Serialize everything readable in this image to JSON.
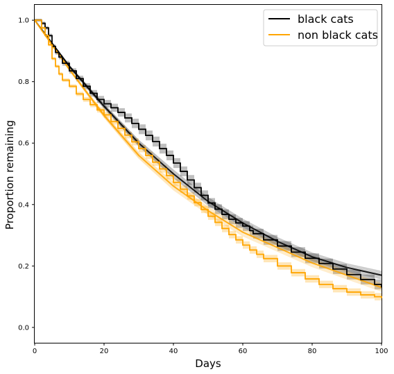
{
  "chart_data": {
    "type": "line",
    "xlabel": "Days",
    "ylabel": "Proportion remaining",
    "xlim": [
      0,
      100
    ],
    "ylim": [
      -0.05,
      1.05
    ],
    "xticks": [
      0,
      20,
      40,
      60,
      80,
      100
    ],
    "yticks": [
      0.0,
      0.2,
      0.4,
      0.6,
      0.8,
      1.0
    ],
    "x_tick_labels": [
      "0",
      "20",
      "40",
      "60",
      "80",
      "100"
    ],
    "y_tick_labels": [
      "0.0",
      "0.2",
      "0.4",
      "0.6",
      "0.8",
      "1.0"
    ],
    "grid": false,
    "legend_position": "top-right",
    "colors": {
      "black": "#000000",
      "orange": "#ffa500"
    },
    "series": [
      {
        "name": "black cats",
        "color": "#000000",
        "kind": "step",
        "x": [
          0,
          2,
          3,
          4,
          5,
          6,
          7,
          8,
          10,
          12,
          14,
          16,
          18,
          20,
          22,
          24,
          26,
          28,
          30,
          32,
          34,
          36,
          38,
          40,
          42,
          44,
          46,
          48,
          50,
          52,
          54,
          56,
          58,
          60,
          62,
          63,
          66,
          70,
          74,
          78,
          82,
          86,
          90,
          94,
          98,
          100
        ],
        "y": [
          1.0,
          0.99,
          0.975,
          0.95,
          0.915,
          0.895,
          0.88,
          0.86,
          0.835,
          0.81,
          0.785,
          0.762,
          0.742,
          0.728,
          0.715,
          0.7,
          0.682,
          0.664,
          0.645,
          0.625,
          0.605,
          0.582,
          0.56,
          0.535,
          0.508,
          0.48,
          0.455,
          0.43,
          0.405,
          0.385,
          0.368,
          0.352,
          0.34,
          0.33,
          0.315,
          0.305,
          0.285,
          0.265,
          0.245,
          0.225,
          0.208,
          0.19,
          0.172,
          0.156,
          0.14,
          0.13
        ]
      },
      {
        "name": "non black cats",
        "color": "#ffa500",
        "kind": "step",
        "x": [
          0,
          2,
          3,
          4,
          5,
          6,
          7,
          8,
          10,
          12,
          14,
          16,
          18,
          20,
          22,
          24,
          26,
          28,
          30,
          32,
          34,
          36,
          38,
          40,
          42,
          44,
          46,
          48,
          50,
          52,
          54,
          56,
          58,
          60,
          62,
          64,
          66,
          70,
          74,
          78,
          82,
          86,
          90,
          94,
          98,
          100
        ],
        "y": [
          1.0,
          0.975,
          0.95,
          0.92,
          0.875,
          0.85,
          0.825,
          0.805,
          0.785,
          0.76,
          0.742,
          0.725,
          0.708,
          0.692,
          0.67,
          0.648,
          0.626,
          0.604,
          0.582,
          0.56,
          0.538,
          0.516,
          0.494,
          0.472,
          0.45,
          0.428,
          0.406,
          0.384,
          0.362,
          0.342,
          0.322,
          0.302,
          0.285,
          0.268,
          0.252,
          0.238,
          0.224,
          0.2,
          0.178,
          0.158,
          0.14,
          0.126,
          0.115,
          0.106,
          0.1,
          0.095
        ]
      }
    ],
    "fitted_curves": [
      {
        "name": "black cats fit",
        "color": "#000000",
        "start": 1.0,
        "x": [
          0,
          10,
          20,
          30,
          40,
          50,
          60,
          70,
          80,
          90,
          100
        ],
        "y": [
          1.0,
          0.85,
          0.72,
          0.6,
          0.5,
          0.41,
          0.34,
          0.28,
          0.23,
          0.195,
          0.17
        ]
      },
      {
        "name": "non black cats fit",
        "color": "#ffa500",
        "start": 1.0,
        "x": [
          0,
          10,
          20,
          30,
          40,
          50,
          60,
          70,
          80,
          90,
          100
        ],
        "y": [
          1.0,
          0.84,
          0.69,
          0.56,
          0.46,
          0.38,
          0.31,
          0.26,
          0.21,
          0.17,
          0.13
        ]
      }
    ]
  }
}
